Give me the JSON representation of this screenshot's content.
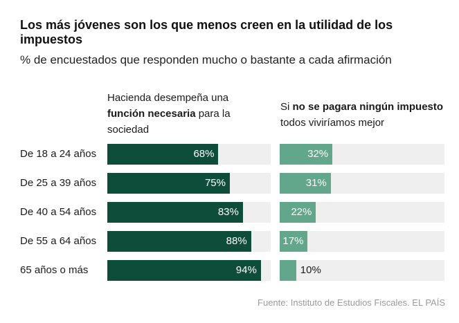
{
  "title": "Los más jóvenes son los que menos creen en la utilidad de los impuestos",
  "subtitle": "% de encuestados que responden mucho o bastante a cada afirmación",
  "source": "Fuente: Instituto de Estudios Fiscales. EL PAÍS",
  "colors": {
    "left_bar": "#0e4d3a",
    "right_bar": "#62a68b",
    "track": "#efefef"
  },
  "chart_data": {
    "type": "bar",
    "orientation": "horizontal",
    "title": "Los más jóvenes son los que menos creen en la utilidad de los impuestos",
    "subtitle": "% de encuestados que responden mucho o bastante a cada afirmación",
    "categories": [
      "De 18 a 24 años",
      "De 25 a 39 años",
      "De 40 a 54 años",
      "De 55 a 64 años",
      "65 años o más"
    ],
    "xlim": [
      0,
      100
    ],
    "series": [
      {
        "name": "Hacienda desempeña una función necesaria para la sociedad",
        "header_parts": {
          "before": "Hacienda desempeña una ",
          "bold": "función necesaria",
          "after": " para la sociedad"
        },
        "values": [
          68,
          75,
          83,
          88,
          94
        ],
        "labels": [
          "68%",
          "75%",
          "83%",
          "88%",
          "94%"
        ]
      },
      {
        "name": "Si no se pagara ningún impuesto todos viviríamos mejor",
        "header_parts": {
          "before": "Si ",
          "bold": "no se pagara ningún impuesto",
          "after": " todos viviríamos mejor"
        },
        "values": [
          32,
          31,
          22,
          17,
          10
        ],
        "labels": [
          "32%",
          "31%",
          "22%",
          "17%",
          "10%"
        ]
      }
    ]
  }
}
